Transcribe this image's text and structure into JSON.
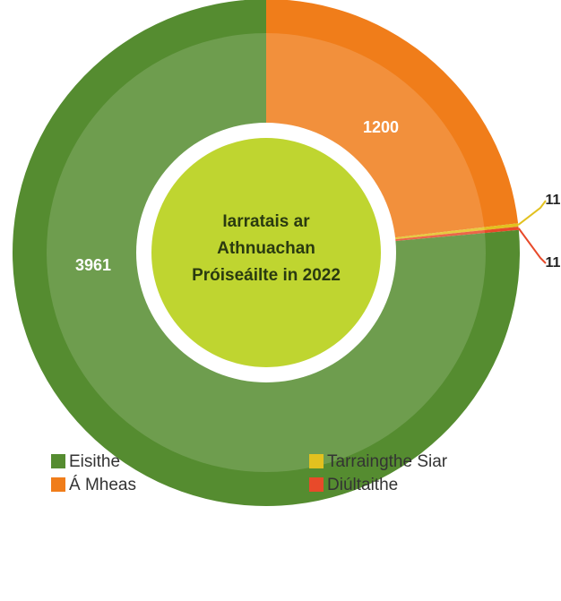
{
  "chart_data": {
    "type": "donut",
    "title": [
      "Iarratais ar",
      "Athnuachan",
      "Próiseáilte in 2022"
    ],
    "categories": [
      "Á Mheas",
      "Tarraingthe Siar",
      "Diúltaithe",
      "Eisithe"
    ],
    "values": [
      1200,
      11,
      11,
      3961
    ],
    "colors": [
      "#f07d1a",
      "#e2c11f",
      "#e84a2a",
      "#558c30"
    ],
    "legend": "bottom"
  }
}
